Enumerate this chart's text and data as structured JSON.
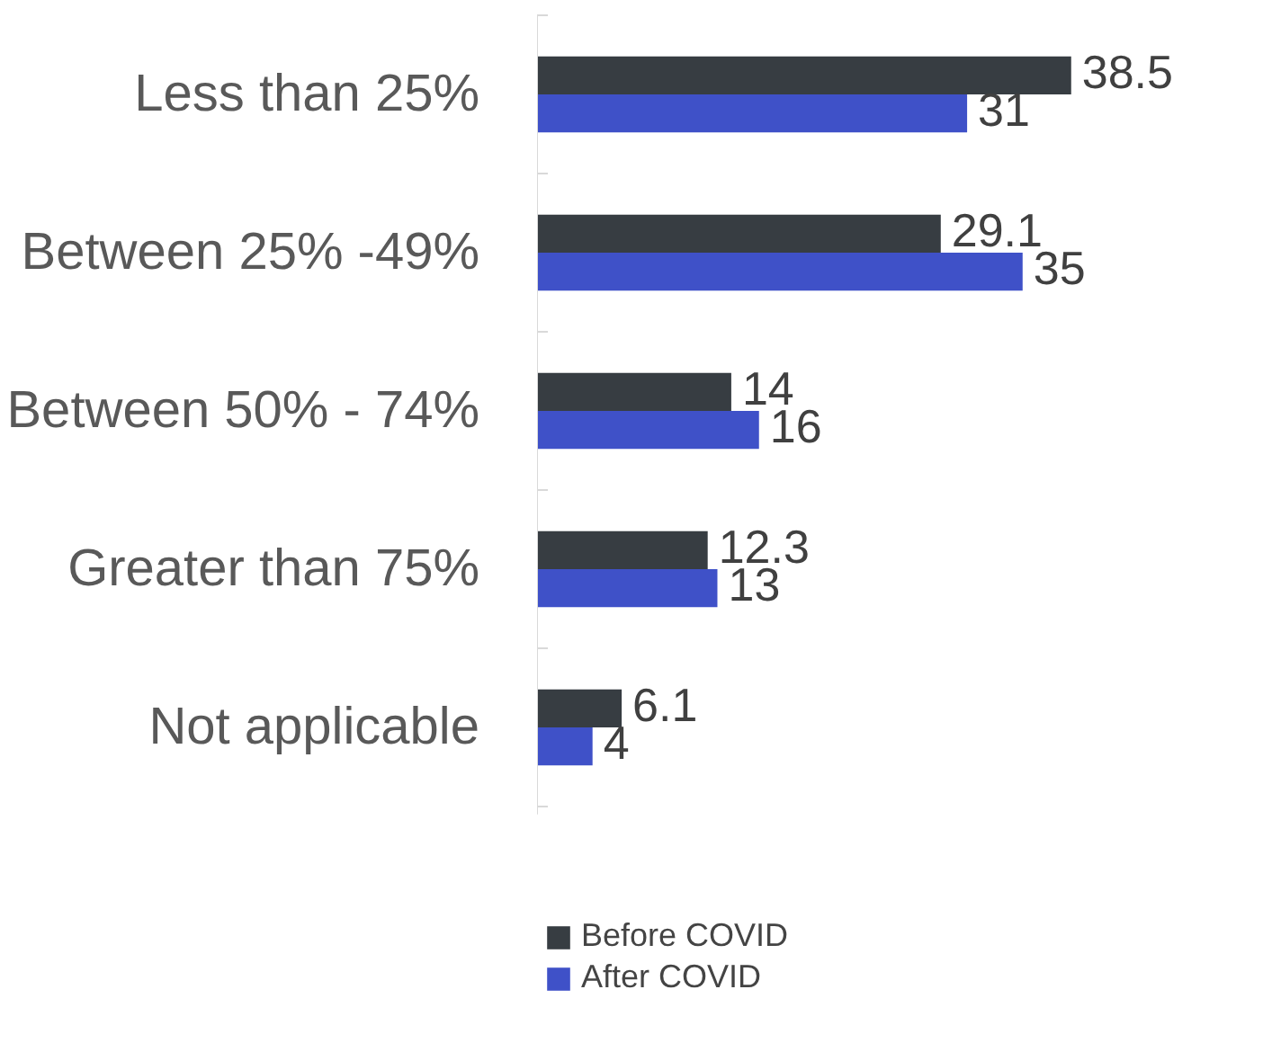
{
  "chart_data": {
    "type": "bar",
    "orientation": "horizontal",
    "categories": [
      "Less than 25%",
      "Between 25% -49%",
      "Between 50% - 74%",
      "Greater than 75%",
      "Not applicable"
    ],
    "series": [
      {
        "name": "Before COVID",
        "color": "#373d42",
        "values": [
          38.5,
          29.1,
          14,
          12.3,
          6.1
        ]
      },
      {
        "name": "After COVID",
        "color": "#3f51c8",
        "values": [
          31,
          35,
          16,
          13,
          4
        ]
      }
    ],
    "data_labels": true,
    "legend": "bottom",
    "grid": false
  }
}
